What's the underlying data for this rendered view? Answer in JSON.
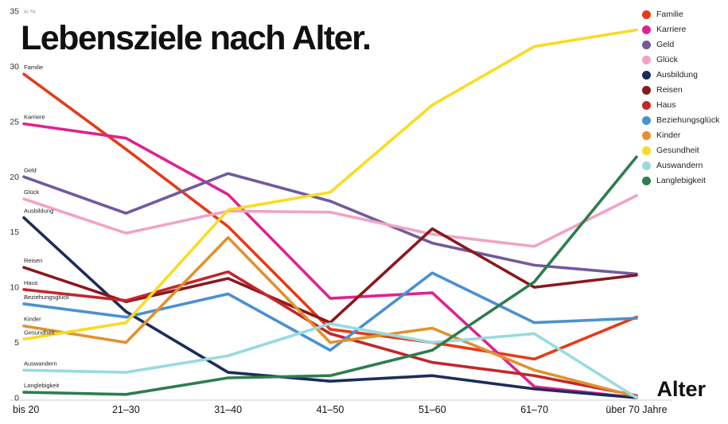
{
  "title": "Lebensziele nach Alter.",
  "axes": {
    "y_unit_label": "in %",
    "x_axis_label": "Alter"
  },
  "chart_data": {
    "type": "line",
    "title": "Lebensziele nach Alter.",
    "xlabel": "Alter",
    "ylabel": "in %",
    "ylim": [
      0,
      35
    ],
    "yticks": [
      0,
      5,
      10,
      15,
      20,
      25,
      30,
      35
    ],
    "categories": [
      "bis 20",
      "21–30",
      "31–40",
      "41–50",
      "51–60",
      "61–70",
      "über 70 Jahre"
    ],
    "grid": false,
    "legend_position": "top-right",
    "series": [
      {
        "name": "Familie",
        "color": "#e63a17",
        "values": [
          29.3,
          22.5,
          15.5,
          6.2,
          5.0,
          3.5,
          7.3
        ]
      },
      {
        "name": "Karriere",
        "color": "#df2290",
        "values": [
          24.8,
          23.5,
          18.4,
          9.0,
          9.5,
          1.0,
          0.0
        ]
      },
      {
        "name": "Geld",
        "color": "#6f5a9e",
        "values": [
          20.0,
          16.7,
          20.3,
          17.8,
          14.0,
          12.0,
          11.2
        ]
      },
      {
        "name": "Glück",
        "color": "#f1a3c5",
        "values": [
          18.0,
          14.9,
          16.9,
          16.8,
          14.8,
          13.7,
          18.3
        ]
      },
      {
        "name": "Ausbildung",
        "color": "#1c2c5b",
        "values": [
          16.3,
          7.8,
          2.3,
          1.5,
          2.0,
          0.8,
          0.0
        ]
      },
      {
        "name": "Reisen",
        "color": "#8a181c",
        "values": [
          11.8,
          8.7,
          10.8,
          6.8,
          15.3,
          10.0,
          11.1
        ]
      },
      {
        "name": "Haus",
        "color": "#c1272d",
        "values": [
          9.8,
          8.8,
          11.4,
          5.8,
          3.2,
          2.0,
          0.2
        ]
      },
      {
        "name": "Beziehungsglück",
        "color": "#4a90d2",
        "values": [
          8.5,
          7.3,
          9.4,
          4.3,
          11.3,
          6.8,
          7.2
        ]
      },
      {
        "name": "Kinder",
        "color": "#e2912d",
        "values": [
          6.5,
          5.0,
          14.5,
          5.0,
          6.3,
          2.5,
          0.1
        ]
      },
      {
        "name": "Gesundheit",
        "color": "#f8dc22",
        "values": [
          5.3,
          6.8,
          17.0,
          18.6,
          26.5,
          31.8,
          33.3
        ]
      },
      {
        "name": "Auswandern",
        "color": "#97dbe0",
        "values": [
          2.5,
          2.3,
          3.8,
          6.7,
          5.0,
          5.8,
          0.0
        ]
      },
      {
        "name": "Langlebigkeit",
        "color": "#2e7d4e",
        "values": [
          0.5,
          0.3,
          1.8,
          2.0,
          4.3,
          10.5,
          21.8
        ]
      }
    ]
  }
}
